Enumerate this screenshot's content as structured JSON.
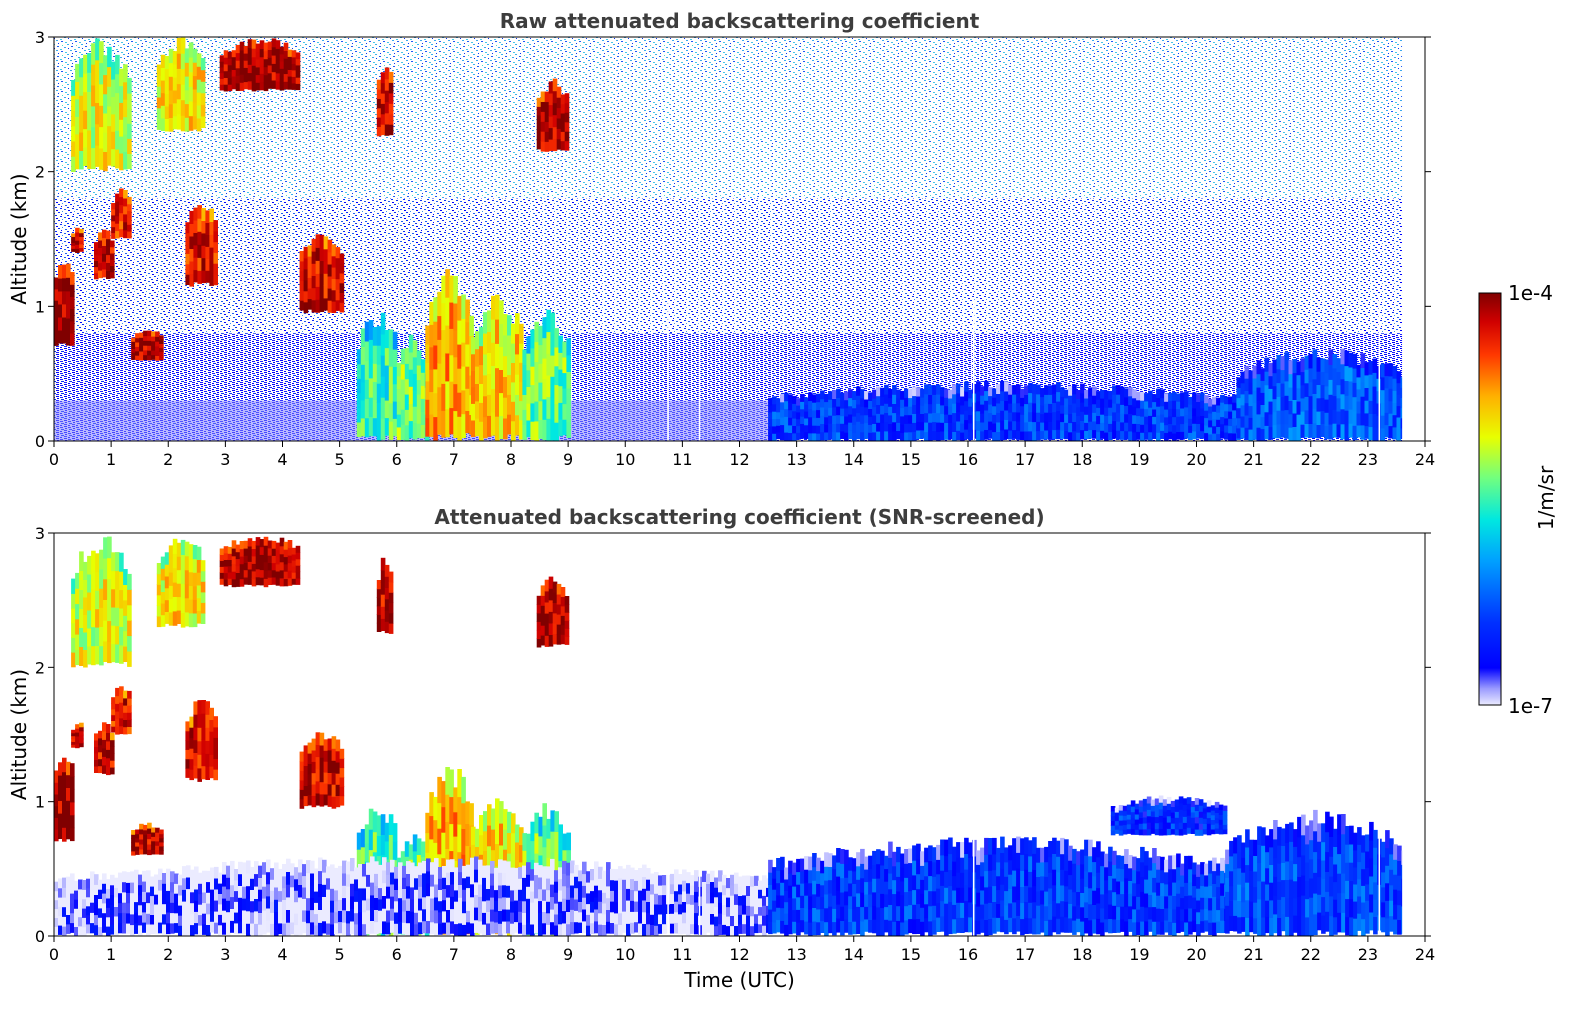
{
  "chart_data": [
    {
      "type": "heatmap",
      "title": "Raw attenuated backscattering coefficient",
      "xlabel": "",
      "ylabel": "Altitude (km)",
      "xlim": [
        0,
        24
      ],
      "ylim": [
        0,
        3
      ],
      "xticks": [
        "0",
        "1",
        "2",
        "3",
        "4",
        "5",
        "6",
        "7",
        "8",
        "9",
        "10",
        "11",
        "12",
        "13",
        "14",
        "15",
        "16",
        "17",
        "18",
        "19",
        "20",
        "21",
        "22",
        "23",
        "24"
      ],
      "yticks": [
        "0",
        "1",
        "2",
        "3"
      ],
      "data_end_time": 23.6,
      "data_gaps": [
        10.75,
        11.3,
        16.1,
        23.2
      ],
      "grid": false,
      "colormap": "jet",
      "features": [
        {
          "t0": 0.0,
          "t1": 0.35,
          "h0": 0.7,
          "h1": 1.4,
          "level": 0.97
        },
        {
          "t0": 0.3,
          "t1": 0.5,
          "h0": 1.4,
          "h1": 1.6,
          "level": 0.95
        },
        {
          "t0": 0.7,
          "t1": 1.0,
          "h0": 1.2,
          "h1": 1.6,
          "level": 0.93
        },
        {
          "t0": 1.0,
          "t1": 1.3,
          "h0": 1.5,
          "h1": 1.9,
          "level": 0.9
        },
        {
          "t0": 1.35,
          "t1": 1.85,
          "h0": 0.6,
          "h1": 0.85,
          "level": 0.95
        },
        {
          "t0": 2.3,
          "t1": 2.85,
          "h0": 1.15,
          "h1": 1.8,
          "level": 0.9
        },
        {
          "t0": 0.3,
          "t1": 1.3,
          "h0": 2.0,
          "h1": 3.0,
          "level": 0.65
        },
        {
          "t0": 1.8,
          "t1": 2.6,
          "h0": 2.3,
          "h1": 3.0,
          "level": 0.68
        },
        {
          "t0": 2.9,
          "t1": 4.3,
          "h0": 2.6,
          "h1": 3.0,
          "level": 0.97
        },
        {
          "t0": 4.3,
          "t1": 5.05,
          "h0": 0.95,
          "h1": 1.55,
          "level": 0.93
        },
        {
          "t0": 5.65,
          "t1": 5.9,
          "h0": 2.25,
          "h1": 2.85,
          "level": 0.95
        },
        {
          "t0": 8.45,
          "t1": 8.95,
          "h0": 2.15,
          "h1": 2.7,
          "level": 0.97
        },
        {
          "t0": 5.3,
          "t1": 6.0,
          "h0": 0.0,
          "h1": 1.0,
          "level": 0.5
        },
        {
          "t0": 6.0,
          "t1": 6.5,
          "h0": 0.0,
          "h1": 0.8,
          "level": 0.55
        },
        {
          "t0": 6.5,
          "t1": 7.3,
          "h0": 0.0,
          "h1": 1.3,
          "level": 0.75
        },
        {
          "t0": 7.3,
          "t1": 8.2,
          "h0": 0.0,
          "h1": 1.1,
          "level": 0.7
        },
        {
          "t0": 8.2,
          "t1": 9.0,
          "h0": 0.0,
          "h1": 1.0,
          "level": 0.55
        },
        {
          "t0": 12.5,
          "t1": 20.7,
          "h0": 0.0,
          "h1": 0.45,
          "level": 0.2
        },
        {
          "t0": 20.7,
          "t1": 23.6,
          "h0": 0.0,
          "h1": 0.7,
          "level": 0.24
        }
      ]
    },
    {
      "type": "heatmap",
      "title": "Attenuated backscattering coefficient (SNR-screened)",
      "xlabel": "Time (UTC)",
      "ylabel": "Altitude (km)",
      "xlim": [
        0,
        24
      ],
      "ylim": [
        0,
        3
      ],
      "xticks": [
        "0",
        "1",
        "2",
        "3",
        "4",
        "5",
        "6",
        "7",
        "8",
        "9",
        "10",
        "11",
        "12",
        "13",
        "14",
        "15",
        "16",
        "17",
        "18",
        "19",
        "20",
        "21",
        "22",
        "23",
        "24"
      ],
      "yticks": [
        "0",
        "1",
        "2",
        "3"
      ],
      "data_end_time": 23.6,
      "data_gaps": [
        10.75,
        11.3,
        16.1,
        23.2
      ],
      "grid": false,
      "colormap": "jet",
      "features": [
        {
          "t0": 0.0,
          "t1": 0.35,
          "h0": 0.7,
          "h1": 1.4,
          "level": 0.97
        },
        {
          "t0": 0.3,
          "t1": 0.5,
          "h0": 1.4,
          "h1": 1.6,
          "level": 0.95
        },
        {
          "t0": 0.7,
          "t1": 1.0,
          "h0": 1.2,
          "h1": 1.6,
          "level": 0.93
        },
        {
          "t0": 1.0,
          "t1": 1.3,
          "h0": 1.5,
          "h1": 1.9,
          "level": 0.9
        },
        {
          "t0": 1.35,
          "t1": 1.85,
          "h0": 0.6,
          "h1": 0.85,
          "level": 0.95
        },
        {
          "t0": 2.3,
          "t1": 2.85,
          "h0": 1.15,
          "h1": 1.8,
          "level": 0.9
        },
        {
          "t0": 0.3,
          "t1": 1.3,
          "h0": 2.0,
          "h1": 3.0,
          "level": 0.65
        },
        {
          "t0": 1.8,
          "t1": 2.6,
          "h0": 2.3,
          "h1": 3.0,
          "level": 0.68
        },
        {
          "t0": 2.9,
          "t1": 4.3,
          "h0": 2.6,
          "h1": 3.0,
          "level": 0.97
        },
        {
          "t0": 4.3,
          "t1": 5.05,
          "h0": 0.95,
          "h1": 1.55,
          "level": 0.93
        },
        {
          "t0": 5.65,
          "t1": 5.9,
          "h0": 2.25,
          "h1": 2.85,
          "level": 0.95
        },
        {
          "t0": 8.45,
          "t1": 8.95,
          "h0": 2.15,
          "h1": 2.7,
          "level": 0.97
        },
        {
          "t0": 5.3,
          "t1": 6.0,
          "h0": 0.0,
          "h1": 1.0,
          "level": 0.5
        },
        {
          "t0": 6.0,
          "t1": 6.5,
          "h0": 0.0,
          "h1": 0.8,
          "level": 0.55
        },
        {
          "t0": 6.5,
          "t1": 7.3,
          "h0": 0.0,
          "h1": 1.3,
          "level": 0.75
        },
        {
          "t0": 7.3,
          "t1": 8.2,
          "h0": 0.0,
          "h1": 1.1,
          "level": 0.7
        },
        {
          "t0": 8.2,
          "t1": 9.0,
          "h0": 0.0,
          "h1": 1.0,
          "level": 0.55
        },
        {
          "t0": 0.0,
          "t1": 12.5,
          "h0": 0.0,
          "h1": 0.6,
          "level": 0.04
        },
        {
          "t0": 12.5,
          "t1": 20.5,
          "h0": 0.0,
          "h1": 0.75,
          "level": 0.2
        },
        {
          "t0": 18.5,
          "t1": 20.5,
          "h0": 0.75,
          "h1": 1.05,
          "level": 0.18
        },
        {
          "t0": 20.5,
          "t1": 23.6,
          "h0": 0.0,
          "h1": 0.95,
          "level": 0.22
        }
      ]
    }
  ],
  "colorbar": {
    "label": "1/m/sr",
    "max_label": "1e-4",
    "min_label": "1e-7"
  }
}
